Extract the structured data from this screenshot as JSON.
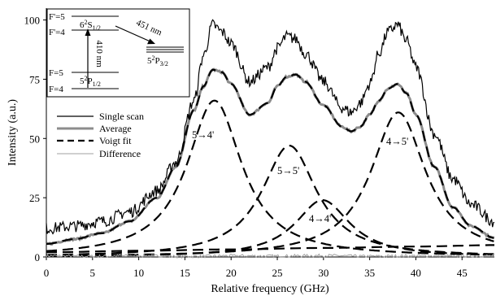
{
  "chart_data": {
    "type": "line",
    "title": "",
    "xlabel": "Relative frequency (GHz)",
    "ylabel": "Intensity (a.u.)",
    "xlim": [
      0,
      48.5
    ],
    "ylim": [
      0,
      105
    ],
    "xticks": [
      0,
      5,
      10,
      15,
      20,
      25,
      30,
      35,
      40,
      45
    ],
    "yticks": [
      0,
      25,
      50,
      75,
      100
    ],
    "grid": false,
    "legend_position": "left",
    "series": [
      {
        "name": "Single scan",
        "style": "solid-black-noisy",
        "x": [
          0,
          3,
          6,
          9,
          12,
          14,
          16,
          17,
          18,
          19,
          20,
          22,
          24,
          25,
          26,
          27,
          28,
          30,
          32,
          33,
          34,
          35,
          36,
          37,
          38,
          39,
          40,
          42,
          44,
          46,
          48.5
        ],
        "y": [
          12,
          13,
          15,
          19,
          28,
          40,
          66,
          85,
          98,
          95,
          90,
          74,
          80,
          88,
          93,
          92,
          86,
          74,
          63,
          61,
          65,
          73,
          86,
          95,
          98,
          91,
          80,
          52,
          33,
          22,
          15
        ]
      },
      {
        "name": "Average",
        "style": "solid-gray-thick",
        "x": [
          0,
          3,
          6,
          9,
          12,
          14,
          16,
          17,
          18,
          19,
          20,
          22,
          24,
          25,
          26,
          27,
          28,
          30,
          32,
          33,
          34,
          35,
          36,
          37,
          38,
          39,
          40,
          42,
          44,
          46,
          48.5
        ],
        "y": [
          5.5,
          7.5,
          10,
          15,
          25,
          38,
          62,
          72,
          79,
          78,
          73,
          60,
          65,
          72,
          76,
          77,
          74,
          64,
          55,
          53,
          55,
          60,
          66,
          71,
          73,
          69,
          60,
          38,
          21,
          13,
          8
        ]
      },
      {
        "name": "Voigt fit",
        "style": "dashed-black",
        "x": [
          0,
          3,
          6,
          9,
          12,
          14,
          16,
          17,
          18,
          19,
          20,
          22,
          24,
          25,
          26,
          27,
          28,
          30,
          32,
          33,
          34,
          35,
          36,
          37,
          38,
          39,
          40,
          42,
          44,
          46,
          48.5
        ],
        "y": [
          5.5,
          7.5,
          10,
          15,
          25,
          38,
          62,
          72,
          79,
          78,
          73,
          60,
          65,
          72,
          76,
          77,
          74,
          64,
          55,
          53,
          55,
          60,
          66,
          71,
          73,
          69,
          60,
          38,
          21,
          13,
          8
        ]
      },
      {
        "name": "Difference",
        "style": "solid-gray-thin",
        "x": [
          0,
          5,
          10,
          15,
          20,
          25,
          30,
          35,
          40,
          45,
          48.5
        ],
        "y": [
          0.5,
          0.3,
          0.6,
          0.2,
          0.5,
          0.4,
          0.6,
          0.3,
          0.5,
          0.4,
          0.5
        ]
      }
    ],
    "components": [
      {
        "label": "5→4'",
        "center": 18.2,
        "amplitude": 66,
        "style": "dashed-black"
      },
      {
        "label": "5→5'",
        "center": 26.3,
        "amplitude": 47,
        "style": "dashed-black"
      },
      {
        "label": "4→4'",
        "center": 29.9,
        "amplitude": 24,
        "style": "dashed-black"
      },
      {
        "label": "4→5'",
        "center": 38.1,
        "amplitude": 61,
        "style": "dashed-black"
      }
    ],
    "baseline_curve": {
      "x": [
        0,
        10,
        20,
        30,
        40,
        48.5
      ],
      "y": [
        2,
        2.6,
        3.2,
        3.8,
        4.4,
        5
      ],
      "style": "dashed-black"
    },
    "inset": {
      "levels": {
        "F5_upper": "F'=5",
        "F4_upper": "F'=4",
        "S_state_base": "6",
        "S_state_sup": "2",
        "S_state_letter": "S",
        "S_state_sub": "1/2",
        "P32_base": "5",
        "P32_sup": "2",
        "P32_letter": "P",
        "P32_sub": "3/2",
        "F5_lower": "F=5",
        "F4_lower": "F=4",
        "P12_base": "5",
        "P12_sup": "2",
        "P12_letter": "P",
        "P12_sub": "1/2"
      },
      "wavelength_up": "410 nm",
      "wavelength_down": "451 nm"
    }
  }
}
